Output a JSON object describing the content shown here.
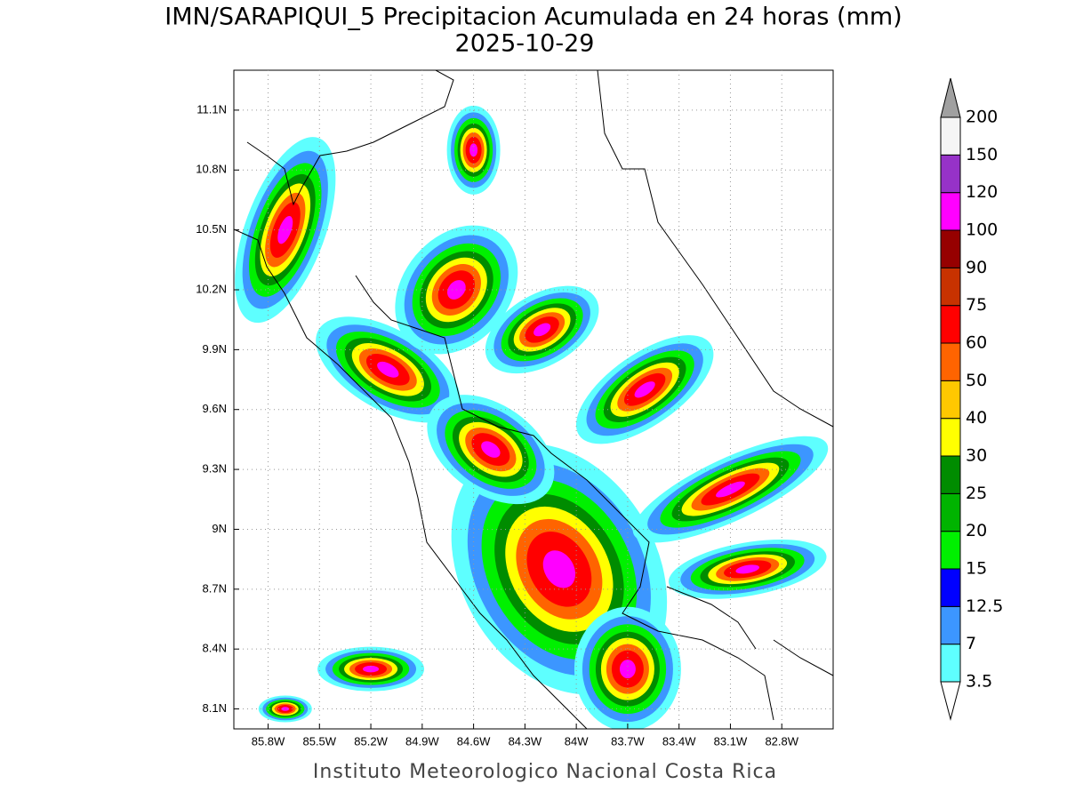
{
  "map": {
    "title": "IMN/SARAPIQUI_5 Precipitacion Acumulada en 24 horas (mm)",
    "subtitle": "2025-10-29",
    "footer": "Instituto Meteorologico Nacional Costa Rica",
    "xlim": [
      -86.0,
      -82.5
    ],
    "ylim": [
      8.0,
      11.3
    ],
    "xticks": [
      {
        "value": -85.8,
        "label": "85.8W"
      },
      {
        "value": -85.5,
        "label": "85.5W"
      },
      {
        "value": -85.2,
        "label": "85.2W"
      },
      {
        "value": -84.9,
        "label": "84.9W"
      },
      {
        "value": -84.6,
        "label": "84.6W"
      },
      {
        "value": -84.3,
        "label": "84.3W"
      },
      {
        "value": -84.0,
        "label": "84W"
      },
      {
        "value": -83.7,
        "label": "83.7W"
      },
      {
        "value": -83.4,
        "label": "83.4W"
      },
      {
        "value": -83.1,
        "label": "83.1W"
      },
      {
        "value": -82.8,
        "label": "82.8W"
      }
    ],
    "yticks": [
      {
        "value": 8.1,
        "label": "8.1N"
      },
      {
        "value": 8.4,
        "label": "8.4N"
      },
      {
        "value": 8.7,
        "label": "8.7N"
      },
      {
        "value": 9.0,
        "label": "9N"
      },
      {
        "value": 9.3,
        "label": "9.3N"
      },
      {
        "value": 9.6,
        "label": "9.6N"
      },
      {
        "value": 9.9,
        "label": "9.9N"
      },
      {
        "value": 10.2,
        "label": "10.2N"
      },
      {
        "value": 10.5,
        "label": "10.5N"
      },
      {
        "value": 10.8,
        "label": "10.8N"
      },
      {
        "value": 11.1,
        "label": "11.1N"
      }
    ],
    "grid": true,
    "colorbar": {
      "levels": [
        3.5,
        7,
        12.5,
        15,
        20,
        25,
        30,
        40,
        50,
        60,
        75,
        90,
        100,
        120,
        150,
        200
      ],
      "colors": [
        "#ffffff",
        "#5effff",
        "#3c96ff",
        "#0000ff",
        "#00f000",
        "#00b400",
        "#008c00",
        "#ffff00",
        "#ffc800",
        "#ff6400",
        "#ff0000",
        "#c83200",
        "#960000",
        "#ff00ff",
        "#9632c8",
        "#f5f5f5",
        "#a0a0a0"
      ]
    }
  }
}
